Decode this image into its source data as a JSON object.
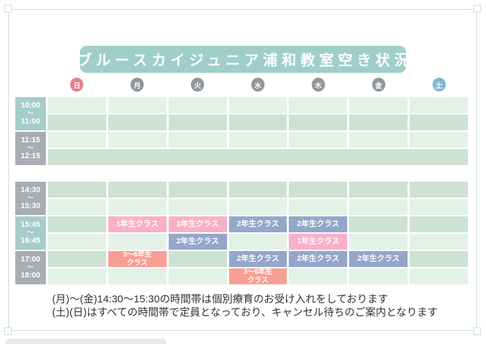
{
  "title": "ブルースカイジュニア浦和教室空き状況",
  "colors": {
    "banner": "#a0cecb",
    "label_teal": "#a6cdca",
    "label_gray": "#a9aeb4",
    "cell_light": "#e4f1e7",
    "cell_dark": "#cee2d4",
    "pink": "#f8b0c8",
    "blue": "#94a7ca",
    "salmon": "#f99f92",
    "day_default": "#90979c",
    "day_sunday": "#e2808d",
    "day_saturday": "#7fb8d8",
    "frame": "#cbdfd6"
  },
  "days": [
    {
      "label": "日",
      "type": "sunday"
    },
    {
      "label": "月",
      "type": "weekday"
    },
    {
      "label": "火",
      "type": "weekday"
    },
    {
      "label": "水",
      "type": "weekday"
    },
    {
      "label": "木",
      "type": "weekday"
    },
    {
      "label": "金",
      "type": "weekday"
    },
    {
      "label": "土",
      "type": "saturday"
    }
  ],
  "sections": [
    {
      "name": "morning",
      "rows": [
        {
          "time_start": "10:00",
          "time_sep": "〜",
          "time_end": "11:00",
          "label_style": "teal",
          "subrows": [
            {
              "shade": "light",
              "cells": [
                null,
                null,
                null,
                null,
                null,
                null,
                null
              ]
            },
            {
              "shade": "dark",
              "cells": [
                null,
                null,
                null,
                null,
                null,
                null,
                null
              ]
            }
          ]
        },
        {
          "time_start": "11:15",
          "time_sep": "〜",
          "time_end": "12:15",
          "label_style": "gray",
          "subrows": [
            {
              "shade": "light",
              "cells": [
                null,
                null,
                null,
                null,
                null,
                null,
                null
              ]
            },
            {
              "shade": "dark",
              "full": true,
              "cells": []
            }
          ]
        }
      ]
    },
    {
      "name": "afternoon",
      "rows": [
        {
          "time_start": "14:30",
          "time_sep": "〜",
          "time_end": "15:30",
          "label_style": "gray",
          "subrows": [
            {
              "shade": "dark",
              "cells": [
                null,
                null,
                null,
                null,
                null,
                null,
                null
              ]
            },
            {
              "shade": "light",
              "cells": [
                null,
                null,
                null,
                null,
                null,
                null,
                null
              ]
            }
          ]
        },
        {
          "time_start": "15:45",
          "time_sep": "〜",
          "time_end": "16:45",
          "label_style": "teal",
          "subrows": [
            {
              "shade": "dark",
              "cells": [
                null,
                {
                  "lines": [
                    "1年生クラス"
                  ],
                  "color": "pink"
                },
                {
                  "lines": [
                    "1年生クラス"
                  ],
                  "color": "pink"
                },
                {
                  "lines": [
                    "2年生クラス"
                  ],
                  "color": "blue"
                },
                {
                  "lines": [
                    "2年生クラス"
                  ],
                  "color": "blue"
                },
                null,
                null
              ]
            },
            {
              "shade": "light",
              "cells": [
                null,
                null,
                {
                  "lines": [
                    "2年生クラス"
                  ],
                  "color": "blue"
                },
                null,
                {
                  "lines": [
                    "1年生クラス"
                  ],
                  "color": "pink"
                },
                null,
                null
              ]
            }
          ]
        },
        {
          "time_start": "17:00",
          "time_sep": "〜",
          "time_end": "18:00",
          "label_style": "gray",
          "subrows": [
            {
              "shade": "dark",
              "cells": [
                null,
                {
                  "lines": [
                    "3〜6年生",
                    "クラス"
                  ],
                  "color": "salmon"
                },
                null,
                {
                  "lines": [
                    "2年生クラス"
                  ],
                  "color": "blue"
                },
                {
                  "lines": [
                    "2年生クラス"
                  ],
                  "color": "blue"
                },
                {
                  "lines": [
                    "2年生クラス"
                  ],
                  "color": "blue"
                },
                null
              ]
            },
            {
              "shade": "light",
              "cells": [
                null,
                null,
                null,
                {
                  "lines": [
                    "3〜6年生",
                    "クラス"
                  ],
                  "color": "salmon"
                },
                null,
                null,
                null
              ]
            }
          ]
        }
      ]
    }
  ],
  "notes": [
    "(月)〜(金)14:30〜15:30の時間帯は個別療育のお受け入れをしております",
    "(土)(日)はすべての時間帯で定員となっており、キャンセル待ちのご案内となります"
  ]
}
